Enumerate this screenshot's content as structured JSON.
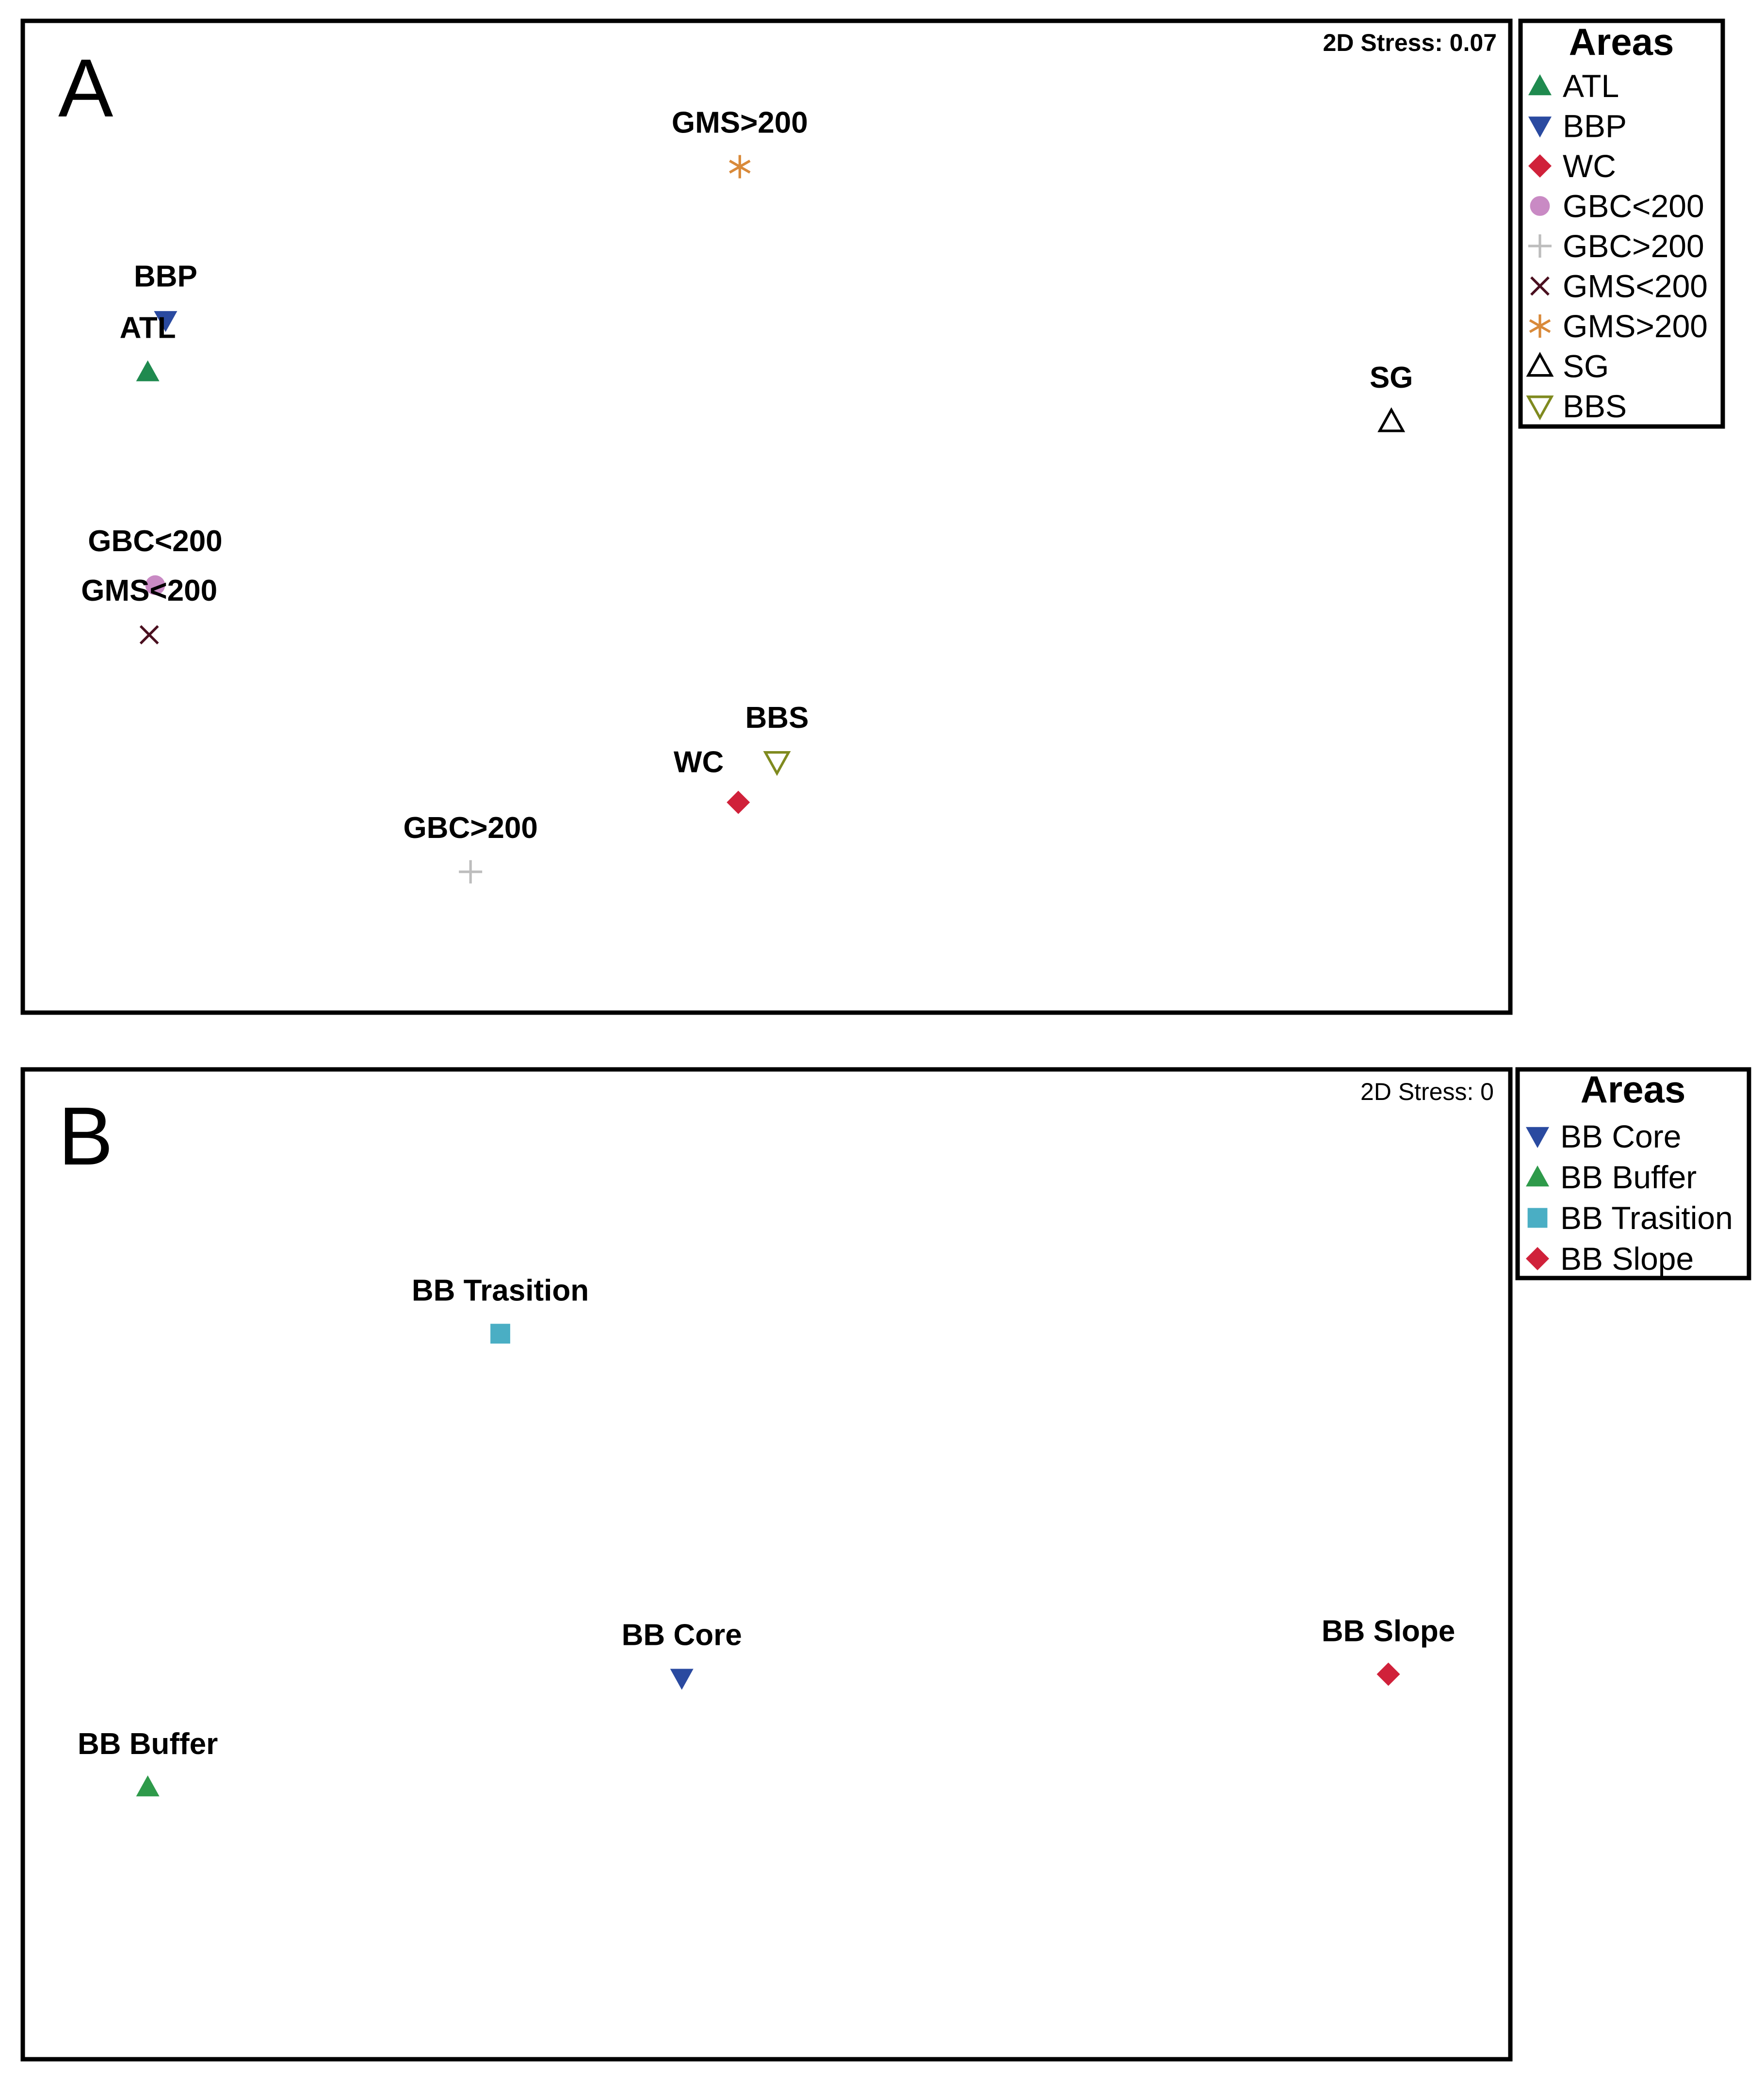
{
  "chart_data": [
    {
      "panel": "A",
      "type": "scatter",
      "subtype": "nMDS ordination",
      "stress_label": "2D Stress: 0.07",
      "xlim": [
        0,
        100
      ],
      "ylim": [
        0,
        100
      ],
      "legend": {
        "title": "Areas",
        "placement": "right",
        "entries": [
          "ATL",
          "BBP",
          "WC",
          "GBC<200",
          "GBC>200",
          "GMS<200",
          "GMS>200",
          "SG",
          "BBS"
        ]
      },
      "points": [
        {
          "label": "GMS>200",
          "x": 48.2,
          "y": 85.3,
          "marker": "asterisk",
          "color": "#d98a3a",
          "label_pos": "above"
        },
        {
          "label": "BBP",
          "x": 9.6,
          "y": 69.8,
          "marker": "tri-down",
          "color": "#2a4aa0",
          "label_pos": "above"
        },
        {
          "label": "ATL",
          "x": 8.4,
          "y": 64.6,
          "marker": "tri-up",
          "color": "#1f8a4f",
          "label_pos": "above"
        },
        {
          "label": "SG",
          "x": 92.0,
          "y": 59.6,
          "marker": "tri-up-open",
          "color": "#000000",
          "label_pos": "above"
        },
        {
          "label": "GBC<200",
          "x": 8.9,
          "y": 43.1,
          "marker": "circle",
          "color": "#c98ac4",
          "label_pos": "above"
        },
        {
          "label": "GMS<200",
          "x": 8.5,
          "y": 38.1,
          "marker": "x",
          "color": "#4a0f1f",
          "label_pos": "above"
        },
        {
          "label": "BBS",
          "x": 50.7,
          "y": 25.3,
          "marker": "tri-down-open",
          "color": "#7f8a1f",
          "label_pos": "above"
        },
        {
          "label": "WC",
          "x": 48.1,
          "y": 21.2,
          "marker": "diamond",
          "color": "#d0213a",
          "label_pos": "above-left"
        },
        {
          "label": "GBC>200",
          "x": 30.1,
          "y": 14.2,
          "marker": "plus",
          "color": "#bdbdbd",
          "label_pos": "above"
        }
      ]
    },
    {
      "panel": "B",
      "type": "scatter",
      "subtype": "nMDS ordination",
      "stress_label": "2D Stress: 0",
      "xlim": [
        0,
        100
      ],
      "ylim": [
        0,
        100
      ],
      "legend": {
        "title": "Areas",
        "placement": "right",
        "entries": [
          "BB Core",
          "BB Buffer",
          "BB Trasition",
          "BB Slope"
        ]
      },
      "points": [
        {
          "label": "BB Trasition",
          "x": 32.1,
          "y": 73.3,
          "marker": "square",
          "color": "#4aaec4",
          "label_pos": "above"
        },
        {
          "label": "BB Core",
          "x": 44.3,
          "y": 38.5,
          "marker": "tri-down",
          "color": "#2a4aa0",
          "label_pos": "above"
        },
        {
          "label": "BB Slope",
          "x": 91.8,
          "y": 38.9,
          "marker": "diamond",
          "color": "#d0213a",
          "label_pos": "above"
        },
        {
          "label": "BB Buffer",
          "x": 8.4,
          "y": 27.5,
          "marker": "tri-up",
          "color": "#2e9a4a",
          "label_pos": "above"
        }
      ]
    }
  ],
  "legend_markers": {
    "A": [
      {
        "marker": "tri-up",
        "color": "#1f8a4f"
      },
      {
        "marker": "tri-down",
        "color": "#2a4aa0"
      },
      {
        "marker": "diamond",
        "color": "#d0213a"
      },
      {
        "marker": "circle",
        "color": "#c98ac4"
      },
      {
        "marker": "plus",
        "color": "#bdbdbd"
      },
      {
        "marker": "x",
        "color": "#4a0f1f"
      },
      {
        "marker": "asterisk",
        "color": "#d98a3a"
      },
      {
        "marker": "tri-up-open",
        "color": "#000000"
      },
      {
        "marker": "tri-down-open",
        "color": "#7f8a1f"
      }
    ],
    "B": [
      {
        "marker": "tri-down",
        "color": "#2a4aa0"
      },
      {
        "marker": "tri-up",
        "color": "#2e9a4a"
      },
      {
        "marker": "square",
        "color": "#4aaec4"
      },
      {
        "marker": "diamond",
        "color": "#d0213a"
      }
    ]
  },
  "panels": {
    "A": {
      "letter": "A"
    },
    "B": {
      "letter": "B"
    }
  }
}
